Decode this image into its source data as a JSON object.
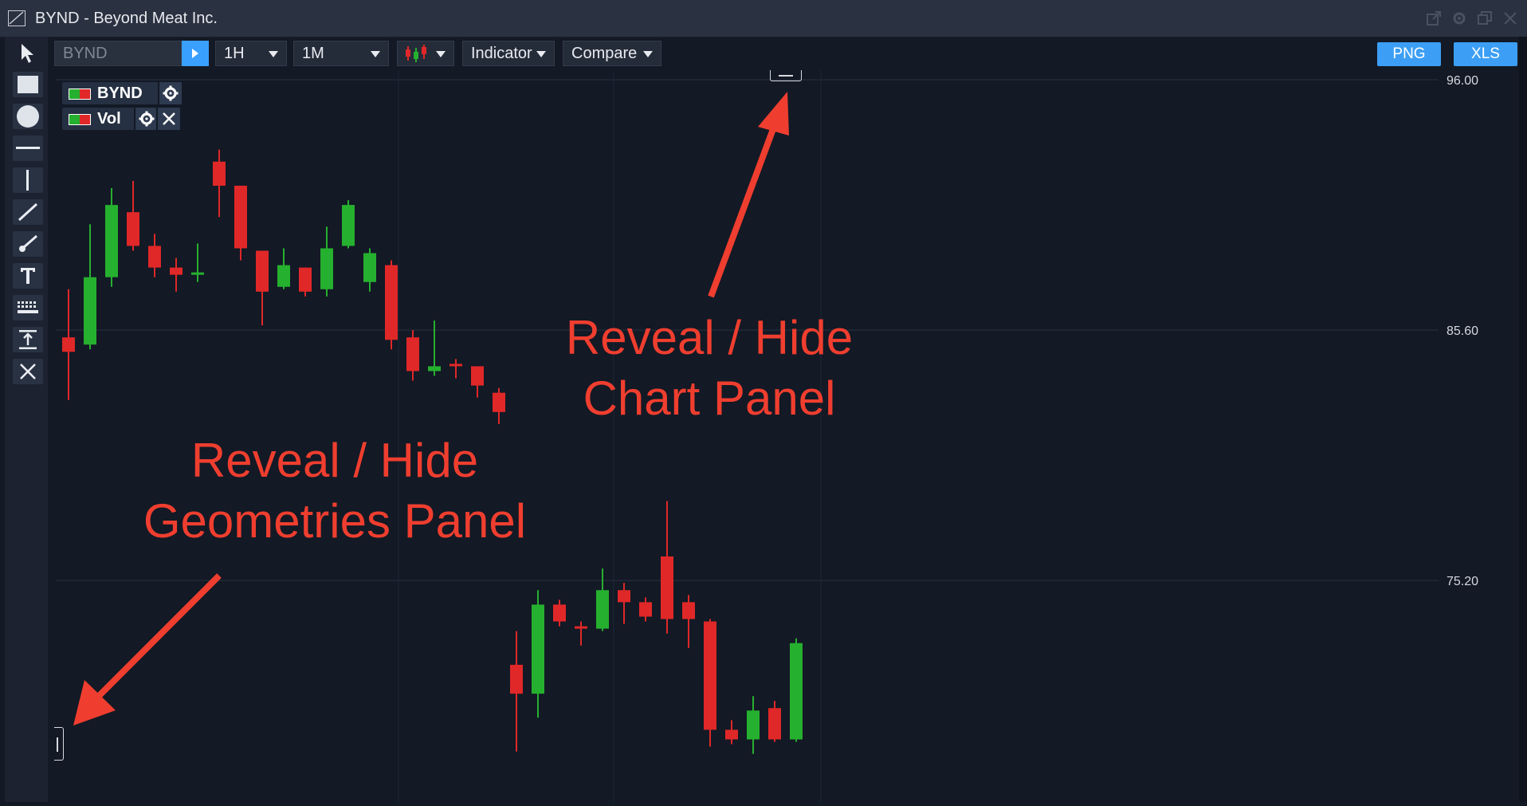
{
  "window": {
    "title": "BYND - Beyond Meat Inc.",
    "controls": [
      "popout-icon",
      "gear-icon",
      "restore-icon",
      "close-icon"
    ]
  },
  "toolbar": {
    "symbol_value": "BYND",
    "interval": "1H",
    "range": "1M",
    "chart_type_icon": "candlestick-icon",
    "indicator_label": "Indicator",
    "compare_label": "Compare",
    "png_label": "PNG",
    "xls_label": "XLS"
  },
  "geometries_panel": {
    "tools": [
      "pointer-icon",
      "rectangle-icon",
      "circle-icon",
      "horizontal-line-icon",
      "vertical-line-icon",
      "trend-line-icon",
      "brush-icon",
      "text-icon",
      "keyboard-icon",
      "vertical-range-icon",
      "delete-icon"
    ]
  },
  "legend": [
    {
      "label": "BYND",
      "icons": [
        "gear-icon"
      ]
    },
    {
      "label": "Vol",
      "icons": [
        "gear-icon",
        "close-icon"
      ]
    }
  ],
  "chart_data": {
    "type": "candlestick",
    "y_ticks": [
      "96.00",
      "85.60",
      "75.20"
    ],
    "ylim": [
      66.0,
      96.4
    ],
    "candles": [
      {
        "o": 85.3,
        "h": 87.3,
        "l": 82.7,
        "c": 84.7
      },
      {
        "o": 85.0,
        "h": 90.0,
        "l": 84.8,
        "c": 87.8
      },
      {
        "o": 87.8,
        "h": 91.5,
        "l": 87.4,
        "c": 90.8
      },
      {
        "o": 90.5,
        "h": 91.8,
        "l": 88.9,
        "c": 89.1
      },
      {
        "o": 89.1,
        "h": 89.6,
        "l": 87.8,
        "c": 88.2
      },
      {
        "o": 88.2,
        "h": 88.6,
        "l": 87.2,
        "c": 87.9
      },
      {
        "o": 87.9,
        "h": 89.2,
        "l": 87.6,
        "c": 88.0
      },
      {
        "o": 92.6,
        "h": 93.1,
        "l": 90.3,
        "c": 91.6
      },
      {
        "o": 91.6,
        "h": 91.6,
        "l": 88.5,
        "c": 89.0
      },
      {
        "o": 88.9,
        "h": 88.9,
        "l": 85.8,
        "c": 87.2
      },
      {
        "o": 87.4,
        "h": 89.0,
        "l": 87.3,
        "c": 88.3
      },
      {
        "o": 88.2,
        "h": 88.2,
        "l": 87.0,
        "c": 87.2
      },
      {
        "o": 87.3,
        "h": 89.9,
        "l": 87.0,
        "c": 89.0
      },
      {
        "o": 89.1,
        "h": 91.0,
        "l": 89.0,
        "c": 90.8
      },
      {
        "o": 87.6,
        "h": 89.0,
        "l": 87.2,
        "c": 88.8
      },
      {
        "o": 88.3,
        "h": 88.5,
        "l": 84.8,
        "c": 85.2
      },
      {
        "o": 85.3,
        "h": 85.6,
        "l": 83.5,
        "c": 83.9
      },
      {
        "o": 83.9,
        "h": 86.0,
        "l": 83.7,
        "c": 84.1
      },
      {
        "o": 84.2,
        "h": 84.4,
        "l": 83.6,
        "c": 84.1
      },
      {
        "o": 84.1,
        "h": 84.1,
        "l": 82.8,
        "c": 83.3
      },
      {
        "o": 83.0,
        "h": 83.2,
        "l": 81.7,
        "c": 82.2
      },
      {
        "o": 71.7,
        "h": 73.1,
        "l": 68.1,
        "c": 70.5
      },
      {
        "o": 70.5,
        "h": 74.8,
        "l": 69.5,
        "c": 74.2
      },
      {
        "o": 74.2,
        "h": 74.4,
        "l": 73.3,
        "c": 73.5
      },
      {
        "o": 73.3,
        "h": 73.5,
        "l": 72.5,
        "c": 73.2
      },
      {
        "o": 73.2,
        "h": 75.7,
        "l": 73.1,
        "c": 74.8
      },
      {
        "o": 74.8,
        "h": 75.1,
        "l": 73.4,
        "c": 74.3
      },
      {
        "o": 74.3,
        "h": 74.5,
        "l": 73.5,
        "c": 73.7
      },
      {
        "o": 76.2,
        "h": 78.5,
        "l": 73.0,
        "c": 73.6
      },
      {
        "o": 74.3,
        "h": 74.6,
        "l": 72.4,
        "c": 73.6
      },
      {
        "o": 73.5,
        "h": 73.6,
        "l": 68.3,
        "c": 69.0
      },
      {
        "o": 69.0,
        "h": 69.4,
        "l": 68.4,
        "c": 68.6
      },
      {
        "o": 68.6,
        "h": 70.4,
        "l": 68.0,
        "c": 69.8
      },
      {
        "o": 69.9,
        "h": 70.2,
        "l": 68.5,
        "c": 68.6
      },
      {
        "o": 68.6,
        "h": 72.8,
        "l": 68.5,
        "c": 72.6
      }
    ]
  },
  "annotations": {
    "chart_panel": [
      "Reveal / Hide",
      "Chart Panel"
    ],
    "geometries_panel": [
      "Reveal / Hide",
      "Geometries Panel"
    ]
  },
  "colors": {
    "up": "#26b02f",
    "down": "#e02828",
    "annotation": "#ef3e2f",
    "accent": "#3c9ff5"
  }
}
